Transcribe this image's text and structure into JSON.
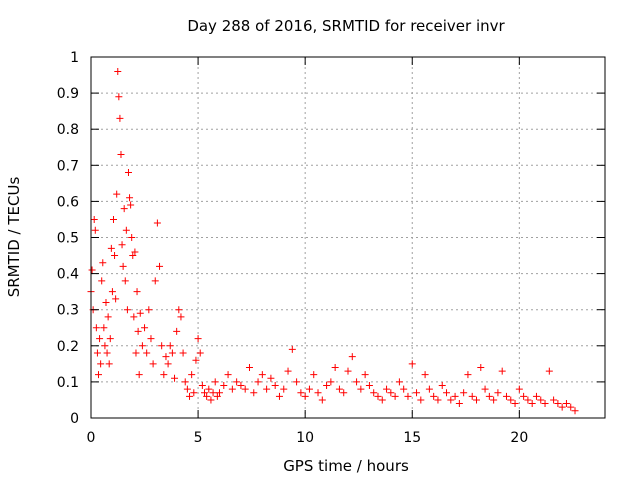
{
  "chart_data": {
    "type": "scatter",
    "title": "Day 288 of 2016, SRMTID for receiver invr",
    "xlabel": "GPS time / hours",
    "ylabel": "SRMTID / TECUs",
    "xlim": [
      0,
      24
    ],
    "ylim": [
      0,
      1
    ],
    "xticks": [
      0,
      5,
      10,
      15,
      20
    ],
    "yticks": [
      0,
      0.1,
      0.2,
      0.3,
      0.4,
      0.5,
      0.6,
      0.7,
      0.8,
      0.9,
      1
    ],
    "ytick_labels": [
      "0",
      "0.1",
      "0.2",
      "0.3",
      "0.4",
      "0.5",
      "0.6",
      "0.7",
      "0.8",
      "0.9",
      "1"
    ],
    "grid": true,
    "marker": "+",
    "color": "#ff0000",
    "series": [
      {
        "name": "SRMTID",
        "x": [
          0.0,
          0.05,
          0.1,
          0.15,
          0.2,
          0.25,
          0.3,
          0.35,
          0.4,
          0.45,
          0.5,
          0.55,
          0.6,
          0.65,
          0.7,
          0.75,
          0.8,
          0.85,
          0.9,
          0.95,
          1.0,
          1.05,
          1.1,
          1.15,
          1.2,
          1.25,
          1.3,
          1.35,
          1.4,
          1.45,
          1.5,
          1.55,
          1.6,
          1.65,
          1.7,
          1.75,
          1.8,
          1.85,
          1.9,
          1.95,
          2.0,
          2.05,
          2.1,
          2.15,
          2.2,
          2.25,
          2.3,
          2.4,
          2.5,
          2.6,
          2.7,
          2.8,
          2.9,
          3.0,
          3.1,
          3.2,
          3.3,
          3.4,
          3.5,
          3.6,
          3.7,
          3.8,
          3.9,
          4.0,
          4.1,
          4.2,
          4.3,
          4.4,
          4.5,
          4.6,
          4.7,
          4.8,
          4.9,
          5.0,
          5.1,
          5.2,
          5.3,
          5.4,
          5.5,
          5.6,
          5.7,
          5.8,
          5.9,
          6.0,
          6.2,
          6.4,
          6.6,
          6.8,
          7.0,
          7.2,
          7.4,
          7.6,
          7.8,
          8.0,
          8.2,
          8.4,
          8.6,
          8.8,
          9.0,
          9.2,
          9.4,
          9.6,
          9.8,
          10.0,
          10.2,
          10.4,
          10.6,
          10.8,
          11.0,
          11.2,
          11.4,
          11.6,
          11.8,
          12.0,
          12.2,
          12.4,
          12.6,
          12.8,
          13.0,
          13.2,
          13.4,
          13.6,
          13.8,
          14.0,
          14.2,
          14.4,
          14.6,
          14.8,
          15.0,
          15.2,
          15.4,
          15.6,
          15.8,
          16.0,
          16.2,
          16.4,
          16.6,
          16.8,
          17.0,
          17.2,
          17.4,
          17.6,
          17.8,
          18.0,
          18.2,
          18.4,
          18.6,
          18.8,
          19.0,
          19.2,
          19.4,
          19.6,
          19.8,
          20.0,
          20.2,
          20.4,
          20.6,
          20.8,
          21.0,
          21.2,
          21.4,
          21.6,
          21.8,
          22.0,
          22.2,
          22.4,
          22.6
        ],
        "y": [
          0.35,
          0.41,
          0.3,
          0.55,
          0.52,
          0.25,
          0.18,
          0.12,
          0.22,
          0.15,
          0.38,
          0.43,
          0.25,
          0.2,
          0.32,
          0.18,
          0.28,
          0.15,
          0.22,
          0.47,
          0.35,
          0.55,
          0.45,
          0.33,
          0.62,
          0.96,
          0.89,
          0.83,
          0.73,
          0.48,
          0.42,
          0.58,
          0.38,
          0.52,
          0.3,
          0.68,
          0.61,
          0.59,
          0.5,
          0.45,
          0.28,
          0.46,
          0.18,
          0.35,
          0.24,
          0.12,
          0.29,
          0.2,
          0.25,
          0.18,
          0.3,
          0.22,
          0.15,
          0.38,
          0.54,
          0.42,
          0.2,
          0.12,
          0.17,
          0.15,
          0.2,
          0.18,
          0.11,
          0.24,
          0.3,
          0.28,
          0.18,
          0.1,
          0.08,
          0.06,
          0.12,
          0.07,
          0.16,
          0.22,
          0.18,
          0.09,
          0.07,
          0.06,
          0.08,
          0.05,
          0.07,
          0.1,
          0.06,
          0.07,
          0.09,
          0.12,
          0.08,
          0.1,
          0.09,
          0.08,
          0.14,
          0.07,
          0.1,
          0.12,
          0.08,
          0.11,
          0.09,
          0.06,
          0.08,
          0.13,
          0.19,
          0.1,
          0.07,
          0.06,
          0.08,
          0.12,
          0.07,
          0.05,
          0.09,
          0.1,
          0.14,
          0.08,
          0.07,
          0.13,
          0.17,
          0.1,
          0.08,
          0.12,
          0.09,
          0.07,
          0.06,
          0.05,
          0.08,
          0.07,
          0.06,
          0.1,
          0.08,
          0.06,
          0.15,
          0.07,
          0.05,
          0.12,
          0.08,
          0.06,
          0.05,
          0.09,
          0.07,
          0.05,
          0.06,
          0.04,
          0.07,
          0.12,
          0.06,
          0.05,
          0.14,
          0.08,
          0.06,
          0.05,
          0.07,
          0.13,
          0.06,
          0.05,
          0.04,
          0.08,
          0.06,
          0.05,
          0.04,
          0.06,
          0.05,
          0.04,
          0.13,
          0.05,
          0.04,
          0.03,
          0.04,
          0.03,
          0.02
        ]
      }
    ]
  }
}
